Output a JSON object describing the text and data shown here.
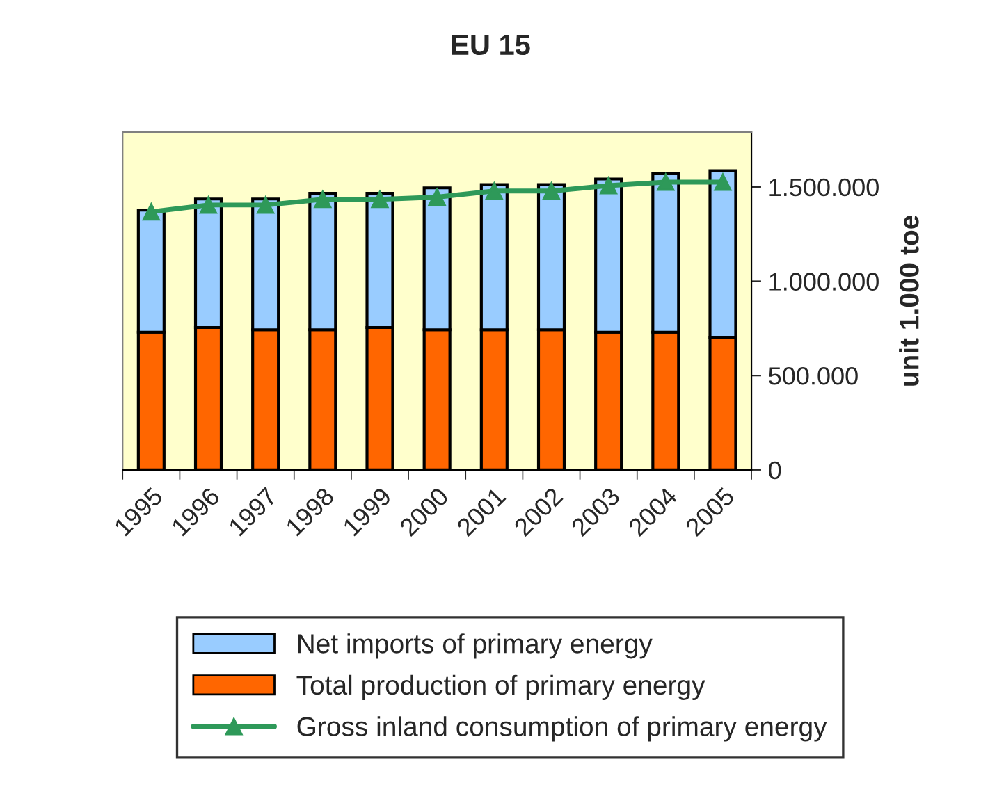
{
  "chart_data": {
    "type": "bar",
    "title": "EU 15",
    "ylabel": "unit 1.000 toe",
    "categories": [
      "1995",
      "1996",
      "1997",
      "1998",
      "1999",
      "2000",
      "2001",
      "2002",
      "2003",
      "2004",
      "2005"
    ],
    "stacked": true,
    "series": [
      {
        "name": "Total production of primary energy",
        "color": "#ff6600",
        "values": [
          730000,
          755000,
          743000,
          743000,
          755000,
          743000,
          743000,
          743000,
          730000,
          730000,
          701000
        ]
      },
      {
        "name": "Net imports of primary energy",
        "color": "#99ccff",
        "values": [
          647000,
          681000,
          693000,
          723000,
          711000,
          752000,
          769000,
          769000,
          812000,
          841000,
          885000
        ]
      },
      {
        "name": "Gross inland consumption of primary energy",
        "type": "line",
        "color": "#2e9959",
        "marker": "triangle",
        "values": [
          1368000,
          1404000,
          1404000,
          1434000,
          1434000,
          1446000,
          1478000,
          1478000,
          1507000,
          1525000,
          1525000
        ]
      }
    ],
    "ylim": [
      0,
      1790000
    ],
    "yticks": [
      {
        "value": 0,
        "label": "0"
      },
      {
        "value": 500000,
        "label": "500.000"
      },
      {
        "value": 1000000,
        "label": "1.000.000"
      },
      {
        "value": 1500000,
        "label": "1.500.000"
      }
    ],
    "grid": false,
    "legend": "bottom"
  }
}
